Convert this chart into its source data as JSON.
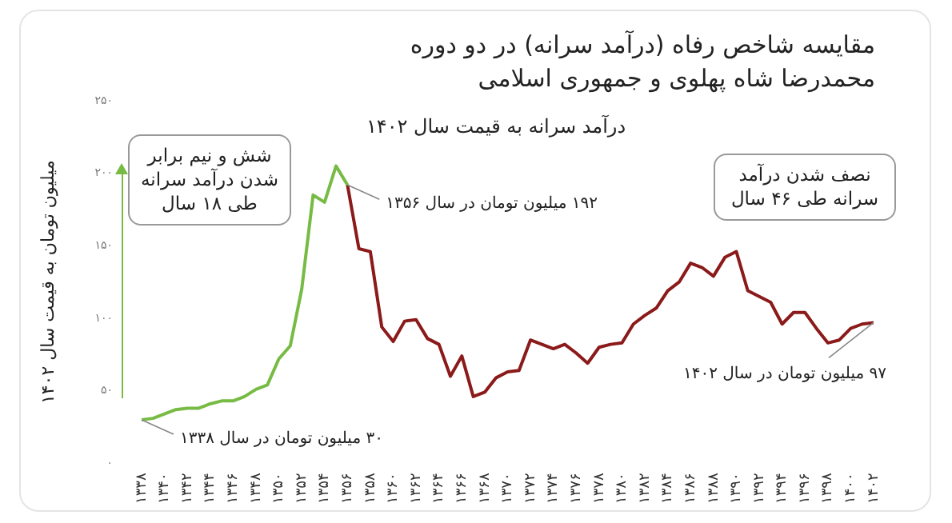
{
  "chart_data": {
    "type": "line",
    "title": "مقایسه شاخص رفاه (درآمد سرانه) در دو دوره محمدرضا شاه پهلوی و جمهوری اسلامی",
    "subtitle": "درآمد سرانه به قیمت سال ۱۴۰۲",
    "ylabel": "میلیون تومان به قیمت سال ۱۴۰۲",
    "series": [
      {
        "color": "#77bb44",
        "x": [
          1338,
          1339,
          1340,
          1341,
          1342,
          1343,
          1344,
          1345,
          1346,
          1347,
          1348,
          1349,
          1350,
          1351,
          1352,
          1353,
          1354,
          1355,
          1356
        ],
        "values": [
          30,
          31,
          34,
          37,
          38,
          38,
          41,
          43,
          43,
          46,
          51,
          54,
          72,
          81,
          120,
          185,
          180,
          205,
          192
        ]
      },
      {
        "color": "#8b1a1a",
        "x": [
          1356,
          1357,
          1358,
          1359,
          1360,
          1361,
          1362,
          1363,
          1364,
          1365,
          1366,
          1367,
          1368,
          1369,
          1370,
          1371,
          1372,
          1373,
          1374,
          1375,
          1376,
          1377,
          1378,
          1379,
          1380,
          1381,
          1382,
          1383,
          1384,
          1385,
          1386,
          1387,
          1388,
          1389,
          1390,
          1391,
          1392,
          1393,
          1394,
          1395,
          1396,
          1397,
          1398,
          1399,
          1400,
          1401,
          1402
        ],
        "values": [
          192,
          148,
          146,
          94,
          84,
          98,
          99,
          86,
          82,
          60,
          74,
          46,
          49,
          59,
          63,
          64,
          85,
          82,
          79,
          82,
          76,
          69,
          80,
          82,
          83,
          96,
          102,
          107,
          119,
          125,
          138,
          135,
          129,
          142,
          146,
          119,
          115,
          111,
          96,
          104,
          104,
          93,
          83,
          85,
          93,
          96,
          97
        ]
      }
    ],
    "xlim": [
      1338,
      1402
    ],
    "xticks": [
      {
        "value": 1338,
        "label": "۱۳۳۸"
      },
      {
        "value": 1340,
        "label": "۱۳۴۰"
      },
      {
        "value": 1342,
        "label": "۱۳۴۲"
      },
      {
        "value": 1344,
        "label": "۱۳۴۴"
      },
      {
        "value": 1346,
        "label": "۱۳۴۶"
      },
      {
        "value": 1348,
        "label": "۱۳۴۸"
      },
      {
        "value": 1350,
        "label": "۱۳۵۰"
      },
      {
        "value": 1352,
        "label": "۱۳۵۲"
      },
      {
        "value": 1354,
        "label": "۱۳۵۴"
      },
      {
        "value": 1356,
        "label": "۱۳۵۶"
      },
      {
        "value": 1358,
        "label": "۱۳۵۸"
      },
      {
        "value": 1360,
        "label": "۱۳۶۰"
      },
      {
        "value": 1362,
        "label": "۱۳۶۲"
      },
      {
        "value": 1364,
        "label": "۱۳۶۴"
      },
      {
        "value": 1366,
        "label": "۱۳۶۶"
      },
      {
        "value": 1368,
        "label": "۱۳۶۸"
      },
      {
        "value": 1370,
        "label": "۱۳۷۰"
      },
      {
        "value": 1372,
        "label": "۱۳۷۲"
      },
      {
        "value": 1374,
        "label": "۱۳۷۴"
      },
      {
        "value": 1376,
        "label": "۱۳۷۶"
      },
      {
        "value": 1378,
        "label": "۱۳۷۸"
      },
      {
        "value": 1380,
        "label": "۱۳۸۰"
      },
      {
        "value": 1382,
        "label": "۱۳۸۲"
      },
      {
        "value": 1384,
        "label": "۱۳۸۴"
      },
      {
        "value": 1386,
        "label": "۱۳۸۶"
      },
      {
        "value": 1388,
        "label": "۱۳۸۸"
      },
      {
        "value": 1390,
        "label": "۱۳۹۰"
      },
      {
        "value": 1392,
        "label": "۱۳۹۲"
      },
      {
        "value": 1394,
        "label": "۱۳۹۴"
      },
      {
        "value": 1396,
        "label": "۱۳۹۶"
      },
      {
        "value": 1398,
        "label": "۱۳۹۸"
      },
      {
        "value": 1400,
        "label": "۱۴۰۰"
      },
      {
        "value": 1402,
        "label": "۱۴۰۲"
      }
    ],
    "ylim": [
      0,
      250
    ],
    "yticks": [
      {
        "value": 0,
        "label": "۰"
      },
      {
        "value": 50,
        "label": "۵۰"
      },
      {
        "value": 100,
        "label": "۱۰۰"
      },
      {
        "value": 150,
        "label": "۱۵۰"
      },
      {
        "value": 200,
        "label": "۲۰۰"
      },
      {
        "value": 250,
        "label": "۲۵۰"
      }
    ],
    "grid": false,
    "legend": false,
    "marker": "none",
    "line_style": "solid",
    "annotations": [
      "شش و نیم برابر شدن درآمد سرانه طی ۱۸ سال",
      {
        "text": "۱۹۲ میلیون تومان در سال ۱۳۵۶",
        "x": 1356,
        "y": 192
      },
      {
        "text": "۳۰ میلیون تومان در سال ۱۳۳۸",
        "x": 1338,
        "y": 30
      },
      "نصف شدن درآمد سرانه طی ۴۶ سال",
      {
        "text": "۹۷ میلیون تومان در سال ۱۴۰۲",
        "x": 1402,
        "y": 97
      }
    ]
  }
}
